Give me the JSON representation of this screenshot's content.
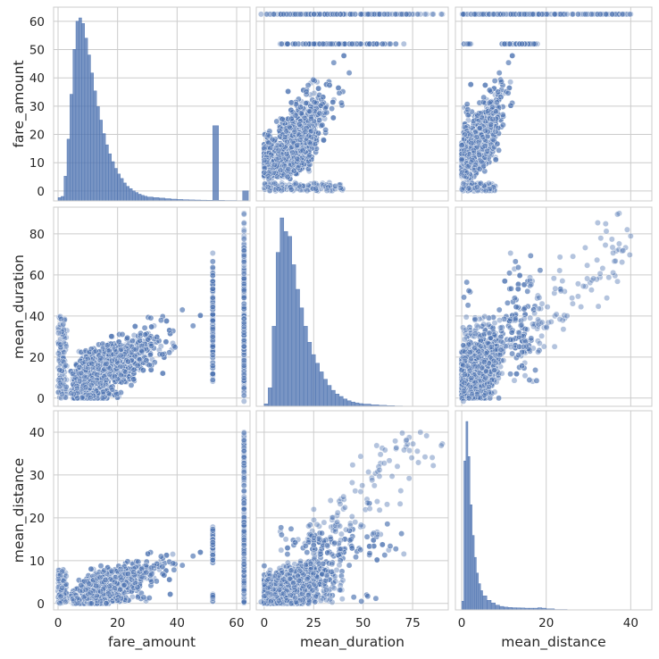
{
  "chart_data": {
    "type": "scatter",
    "kind": "pairplot",
    "variables": [
      "fare_amount",
      "mean_duration",
      "mean_distance"
    ],
    "axes": {
      "fare_amount": {
        "label": "fare_amount",
        "range": [
          -1.5,
          64.5
        ],
        "ticks": [
          0,
          20,
          40,
          60
        ],
        "tick_labels": [
          "0",
          "20",
          "40",
          "60"
        ]
      },
      "mean_duration": {
        "label": "mean_duration",
        "range": [
          -4,
          93
        ],
        "ticks": [
          0,
          25,
          50,
          75
        ],
        "tick_labels": [
          "0",
          "25",
          "50",
          "75"
        ]
      },
      "mean_distance": {
        "label": "mean_distance",
        "range": [
          -1.5,
          45
        ],
        "ticks": [
          0,
          20,
          40
        ],
        "tick_labels": [
          "0",
          "20",
          "40"
        ]
      }
    },
    "y_axes": {
      "fare_amount": {
        "label": "fare_amount",
        "range": [
          -3.5,
          65
        ],
        "ticks": [
          0,
          10,
          20,
          30,
          40,
          50,
          60
        ],
        "tick_labels": [
          "0",
          "10",
          "20",
          "30",
          "40",
          "50",
          "60"
        ]
      },
      "mean_duration": {
        "label": "mean_duration",
        "range": [
          -4,
          93
        ],
        "ticks": [
          0,
          20,
          40,
          60,
          80
        ],
        "tick_labels": [
          "0",
          "20",
          "40",
          "60",
          "80"
        ]
      },
      "mean_distance": {
        "label": "mean_distance",
        "range": [
          -1.5,
          45
        ],
        "ticks": [
          0,
          10,
          20,
          30,
          40
        ],
        "tick_labels": [
          "0",
          "10",
          "20",
          "30",
          "40"
        ]
      }
    },
    "color": "#4c72b0",
    "grid": true,
    "legend": "none",
    "diagonal": {
      "fare_amount": {
        "type": "histogram",
        "bins": [
          [
            0,
            0.3
          ],
          [
            1,
            0.4
          ],
          [
            2,
            2.2
          ],
          [
            3,
            5.5
          ],
          [
            4,
            9.5
          ],
          [
            5,
            13.5
          ],
          [
            6,
            16.0
          ],
          [
            7,
            16.3
          ],
          [
            8,
            15.8
          ],
          [
            9,
            14.5
          ],
          [
            10,
            13.0
          ],
          [
            11,
            11.4
          ],
          [
            12,
            9.8
          ],
          [
            13,
            8.4
          ],
          [
            14,
            7.2
          ],
          [
            15,
            6.0
          ],
          [
            16,
            5.0
          ],
          [
            17,
            4.2
          ],
          [
            18,
            3.5
          ],
          [
            19,
            2.9
          ],
          [
            20,
            2.4
          ],
          [
            21,
            2.0
          ],
          [
            22,
            1.6
          ],
          [
            23,
            1.3
          ],
          [
            24,
            1.1
          ],
          [
            25,
            0.9
          ],
          [
            26,
            0.75
          ],
          [
            27,
            0.6
          ],
          [
            28,
            0.5
          ],
          [
            29,
            0.42
          ],
          [
            30,
            0.35
          ],
          [
            32,
            0.3
          ],
          [
            34,
            0.25
          ],
          [
            36,
            0.2
          ],
          [
            38,
            0.16
          ],
          [
            40,
            0.13
          ],
          [
            42,
            0.11
          ],
          [
            44,
            0.09
          ],
          [
            46,
            0.08
          ],
          [
            48,
            0.07
          ],
          [
            50,
            0.06
          ],
          [
            52,
            6.7
          ],
          [
            54,
            0.05
          ],
          [
            56,
            0.04
          ],
          [
            58,
            0.04
          ],
          [
            60,
            0.03
          ],
          [
            62,
            0.9
          ]
        ]
      },
      "mean_duration": {
        "type": "histogram",
        "bins": [
          [
            0,
            0.2
          ],
          [
            2,
            1.5
          ],
          [
            4,
            6.5
          ],
          [
            6,
            12.5
          ],
          [
            8,
            15.3
          ],
          [
            10,
            14.2
          ],
          [
            12,
            13.8
          ],
          [
            14,
            11.5
          ],
          [
            16,
            9.5
          ],
          [
            18,
            8.0
          ],
          [
            20,
            6.5
          ],
          [
            22,
            5.2
          ],
          [
            24,
            4.2
          ],
          [
            26,
            3.5
          ],
          [
            28,
            2.8
          ],
          [
            30,
            2.2
          ],
          [
            32,
            1.7
          ],
          [
            34,
            1.3
          ],
          [
            36,
            1.0
          ],
          [
            38,
            0.8
          ],
          [
            40,
            0.6
          ],
          [
            42,
            0.45
          ],
          [
            44,
            0.35
          ],
          [
            46,
            0.28
          ],
          [
            48,
            0.22
          ],
          [
            50,
            0.18
          ],
          [
            54,
            0.12
          ],
          [
            58,
            0.08
          ],
          [
            62,
            0.05
          ],
          [
            66,
            0.03
          ],
          [
            70,
            0.02
          ],
          [
            75,
            0.01
          ],
          [
            80,
            0.01
          ],
          [
            86,
            0.01
          ]
        ]
      },
      "mean_distance": {
        "type": "histogram",
        "bins": [
          [
            0,
            1.0
          ],
          [
            0.5,
            17.0
          ],
          [
            1,
            21.5
          ],
          [
            1.5,
            17.5
          ],
          [
            2,
            12.0
          ],
          [
            2.5,
            8.5
          ],
          [
            3,
            6.0
          ],
          [
            3.5,
            4.2
          ],
          [
            4,
            3.0
          ],
          [
            4.5,
            2.2
          ],
          [
            5,
            1.6
          ],
          [
            6,
            1.1
          ],
          [
            7,
            0.8
          ],
          [
            8,
            0.55
          ],
          [
            9,
            0.4
          ],
          [
            10,
            0.32
          ],
          [
            11,
            0.28
          ],
          [
            12,
            0.25
          ],
          [
            13,
            0.24
          ],
          [
            14,
            0.22
          ],
          [
            15,
            0.2
          ],
          [
            16,
            0.2
          ],
          [
            17,
            0.2
          ],
          [
            18,
            0.25
          ],
          [
            19,
            0.2
          ],
          [
            20,
            0.12
          ],
          [
            22,
            0.05
          ],
          [
            25,
            0.02
          ],
          [
            30,
            0.01
          ]
        ]
      }
    },
    "scatter_points_by_panel": "fare_amount vs mean_duration vs mean_distance, dense positively correlated cloud; fare capped near 52 and 62.5"
  }
}
